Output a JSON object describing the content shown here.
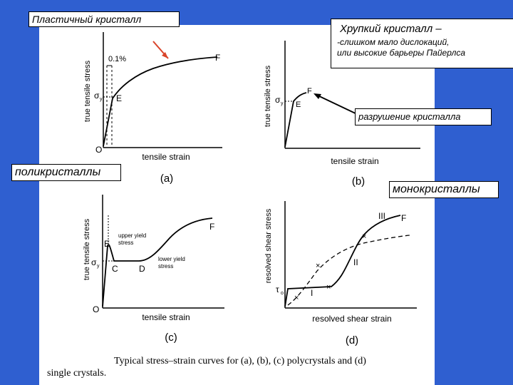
{
  "labels": {
    "plastic": "Пластичный кристалл",
    "brittle_title": "Хрупкий кристалл –",
    "brittle_line1": "-слишком мало  дислокаций,",
    "brittle_line2": "или высокие барьеры Пайерлса",
    "fracture": "разрушение кристалла",
    "polycrystals": "поликристаллы",
    "monocrystals": "монокристаллы"
  },
  "panel_a": {
    "ylabel": "true tensile stress",
    "xlabel": "tensile strain",
    "panel": "(a)",
    "offset": "0.1%",
    "sigma": "σ",
    "sigma_sub": "y",
    "point_e": "E",
    "point_f": "F",
    "origin": "O"
  },
  "panel_b": {
    "ylabel": "true tensile stress",
    "xlabel": "tensile strain",
    "panel": "(b)",
    "sigma": "σ",
    "sigma_sub": "y",
    "point_e": "E",
    "point_f": "F"
  },
  "panel_c": {
    "ylabel": "true tensile stress",
    "xlabel": "tensile strain",
    "panel": "(c)",
    "upper_yield_1": "upper yield",
    "upper_yield_2": "stress",
    "lower_yield_1": "lower yield",
    "lower_yield_2": "stress",
    "sigma": "σ",
    "sigma_sub": "y",
    "point_e": "E",
    "point_c": "C",
    "point_d": "D",
    "point_f": "F",
    "origin": "O"
  },
  "panel_d": {
    "ylabel": "resolved shear stress",
    "xlabel": "resolved shear  strain",
    "panel": "(d)",
    "tau": "τ",
    "tau_sub": "o",
    "stage_1": "I",
    "stage_2": "II",
    "stage_3": "III",
    "point_f": "F"
  },
  "caption": {
    "line1": "Typical stress–strain curves for (a), (b), (c) polycrystals and (d)",
    "line2": "single crystals."
  },
  "colors": {
    "background": "#2f5fd0",
    "sheet": "#ffffff",
    "arrow": "#d9442a",
    "ink": "#000000"
  }
}
